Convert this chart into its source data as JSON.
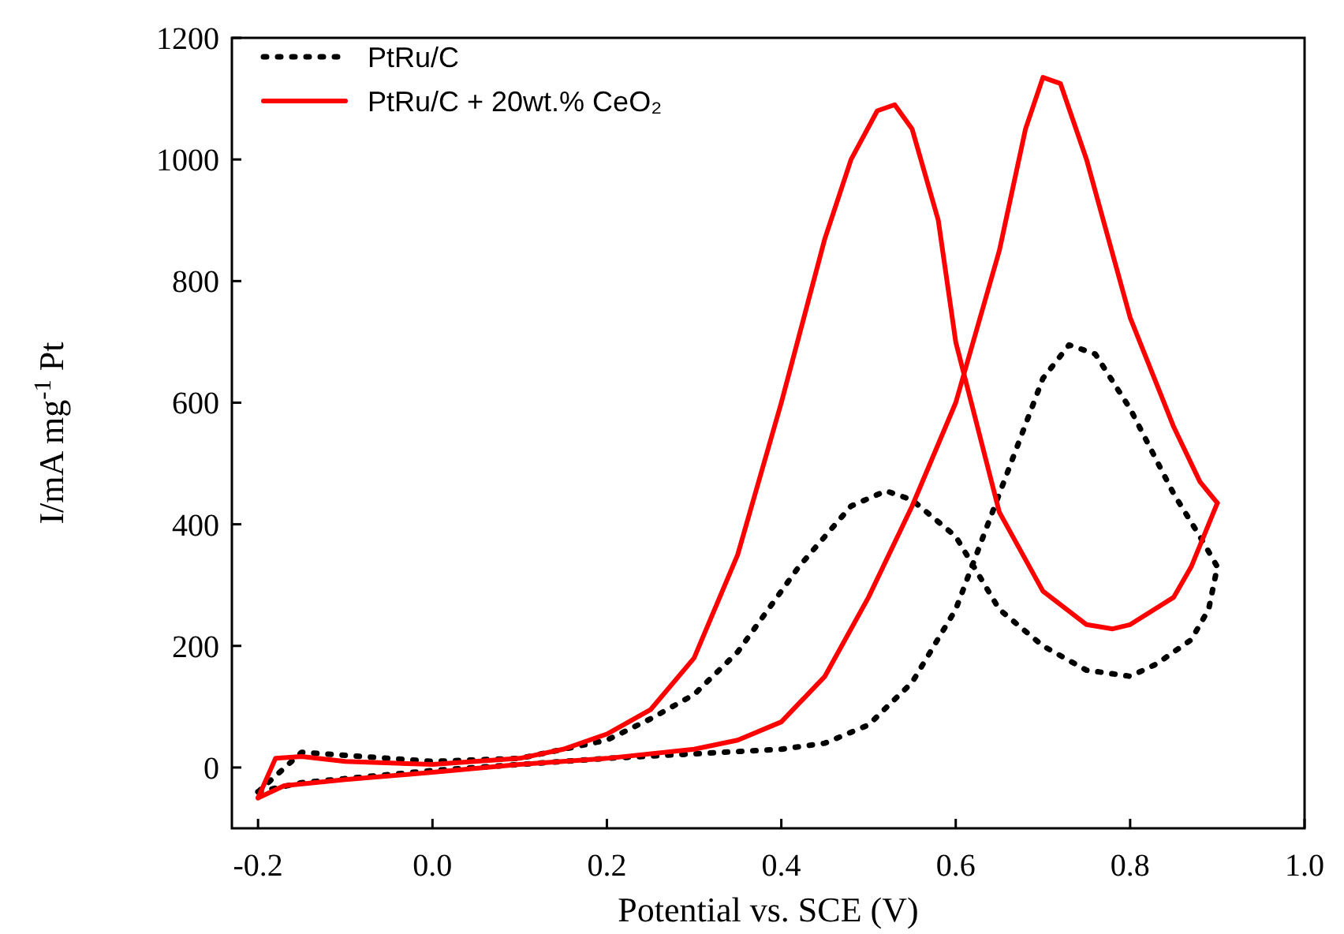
{
  "chart_data": {
    "type": "line",
    "xlabel": "Potential vs. SCE (V)",
    "ylabel": "I/mA mg$^{-1}$ Pt",
    "xlim": [
      -0.23,
      1.0
    ],
    "xticks": [
      {
        "value": -0.2,
        "label": "-0.2"
      },
      {
        "value": 0,
        "label": "0.0"
      },
      {
        "value": 0.2,
        "label": "0.2"
      },
      {
        "value": 0.4,
        "label": "0.4"
      },
      {
        "value": 0.6,
        "label": "0.6"
      },
      {
        "value": 0.8,
        "label": "0.8"
      },
      {
        "value": 1,
        "label": "1.0"
      }
    ],
    "ylim": [
      -100,
      1200
    ],
    "yticks": [
      0,
      200,
      400,
      600,
      800,
      1000,
      1200
    ],
    "grid": false,
    "legend": "top left",
    "marker": "none",
    "series": [
      {
        "name": "PtRu/C",
        "color": "#000000",
        "line_style": "dotted",
        "x": [
          -0.2,
          -0.15,
          0,
          0.2,
          0.4,
          0.45,
          0.5,
          0.55,
          0.6,
          0.65,
          0.7,
          0.73,
          0.76,
          0.8,
          0.85,
          0.88,
          0.9
        ],
        "values": [
          -40,
          -25,
          -5,
          15,
          30,
          40,
          70,
          140,
          260,
          450,
          640,
          695,
          680,
          590,
          450,
          380,
          330
        ]
      },
      {
        "color": "#000000",
        "line_style": "dotted",
        "x": [
          -0.2,
          -0.15,
          -0.1,
          0,
          0.1,
          0.2,
          0.25,
          0.3,
          0.35,
          0.42,
          0.48,
          0.52,
          0.55,
          0.6,
          0.65,
          0.7,
          0.75,
          0.8,
          0.83,
          0.87,
          0.89,
          0.9
        ],
        "values": [
          -40,
          25,
          20,
          10,
          15,
          45,
          80,
          120,
          190,
          330,
          430,
          455,
          440,
          380,
          260,
          200,
          160,
          150,
          170,
          210,
          260,
          330
        ]
      },
      {
        "name": "PtRu/C + 20wt.% CeO₂",
        "color": "#ff0000",
        "line_style": "solid",
        "x": [
          -0.2,
          -0.17,
          -0.1,
          0,
          0.1,
          0.2,
          0.3,
          0.35,
          0.4,
          0.45,
          0.5,
          0.55,
          0.6,
          0.65,
          0.68,
          0.7,
          0.72,
          0.75,
          0.8,
          0.85,
          0.88,
          0.9
        ],
        "values": [
          -50,
          -30,
          -20,
          -8,
          5,
          15,
          30,
          45,
          75,
          150,
          280,
          430,
          600,
          850,
          1050,
          1135,
          1125,
          1000,
          740,
          560,
          470,
          435
        ]
      },
      {
        "color": "#ff0000",
        "line_style": "solid",
        "x": [
          -0.2,
          -0.18,
          -0.15,
          -0.1,
          0,
          0.1,
          0.15,
          0.2,
          0.25,
          0.3,
          0.35,
          0.4,
          0.45,
          0.48,
          0.51,
          0.53,
          0.55,
          0.58,
          0.6,
          0.65,
          0.7,
          0.75,
          0.78,
          0.8,
          0.85,
          0.87,
          0.89,
          0.9
        ],
        "values": [
          -50,
          15,
          18,
          10,
          5,
          15,
          30,
          55,
          95,
          180,
          350,
          600,
          870,
          1000,
          1080,
          1090,
          1050,
          900,
          700,
          420,
          290,
          235,
          228,
          235,
          280,
          330,
          400,
          435
        ]
      }
    ]
  }
}
